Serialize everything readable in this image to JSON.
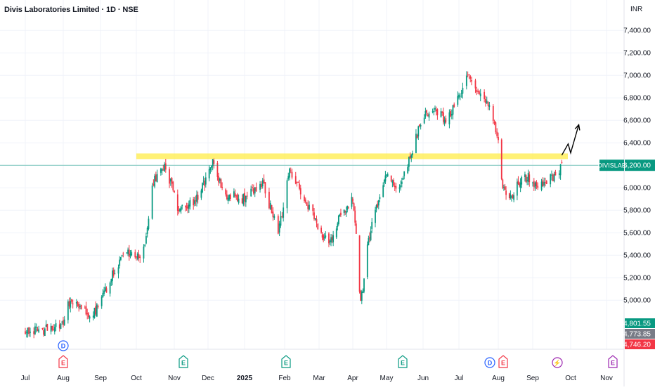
{
  "chart_data": {
    "type": "candlestick",
    "title": "Divis Laboratories Limited · 1D · NSE",
    "currency": "INR",
    "symbol": "DIVISLAB",
    "last_price_label": "6,200.00",
    "last_price": 6200,
    "ylim": [
      4700,
      7560
    ],
    "y_ticks": [
      {
        "value": 7400,
        "label": "7,400.00"
      },
      {
        "value": 7200,
        "label": "7,200.00"
      },
      {
        "value": 7000,
        "label": "7,000.00"
      },
      {
        "value": 6800,
        "label": "6,800.00"
      },
      {
        "value": 6600,
        "label": "6,600.00"
      },
      {
        "value": 6400,
        "label": "6,400.00"
      },
      {
        "value": 6200,
        "label": "6,200.00"
      },
      {
        "value": 6000,
        "label": "6,000.00"
      },
      {
        "value": 5800,
        "label": "5,800.00"
      },
      {
        "value": 5600,
        "label": "5,600.00"
      },
      {
        "value": 5400,
        "label": "5,400.00"
      },
      {
        "value": 5200,
        "label": "5,200.00"
      },
      {
        "value": 5000,
        "label": "5,000.00"
      }
    ],
    "x_months": [
      {
        "month": "2024-07",
        "label": "Jul",
        "bold": false
      },
      {
        "month": "2024-08",
        "label": "Aug",
        "bold": false
      },
      {
        "month": "2024-09",
        "label": "Sep",
        "bold": false
      },
      {
        "month": "2024-10",
        "label": "Oct",
        "bold": false
      },
      {
        "month": "2024-11",
        "label": "Nov",
        "bold": false
      },
      {
        "month": "2024-12",
        "label": "Dec",
        "bold": false
      },
      {
        "month": "2025-01",
        "label": "2025",
        "bold": true
      },
      {
        "month": "2025-02",
        "label": "Feb",
        "bold": false
      },
      {
        "month": "2025-03",
        "label": "Mar",
        "bold": false
      },
      {
        "month": "2025-04",
        "label": "Apr",
        "bold": false
      },
      {
        "month": "2025-05",
        "label": "May",
        "bold": false
      },
      {
        "month": "2025-06",
        "label": "Jun",
        "bold": false
      },
      {
        "month": "2025-07",
        "label": "Jul",
        "bold": false
      },
      {
        "month": "2025-08",
        "label": "Aug",
        "bold": false
      },
      {
        "month": "2025-09",
        "label": "Sep",
        "bold": false
      },
      {
        "month": "2025-10",
        "label": "Oct",
        "bold": false
      },
      {
        "month": "2025-11",
        "label": "Nov",
        "bold": false
      }
    ],
    "extra_price_labels": [
      {
        "label": "4,801.55",
        "color": "#089981"
      },
      {
        "label": "4,773.85",
        "color": "#787b86"
      },
      {
        "label": "4,746.20",
        "color": "#f23645"
      }
    ],
    "resistance_level": 6280,
    "event_markers": [
      {
        "month": "2024-08",
        "letter": "D",
        "kind": "dividend",
        "color": "#2962ff"
      },
      {
        "month": "2024-08",
        "letter": "E",
        "kind": "earnings",
        "color": "#f23645"
      },
      {
        "month": "2024-11",
        "letter": "E",
        "kind": "earnings",
        "color": "#089981"
      },
      {
        "month": "2025-02",
        "letter": "E",
        "kind": "earnings",
        "color": "#089981"
      },
      {
        "month": "2025-05",
        "letter": "E",
        "kind": "earnings",
        "color": "#089981"
      },
      {
        "month": "2025-08",
        "letter": "D",
        "kind": "dividend",
        "color": "#2962ff"
      },
      {
        "month": "2025-08",
        "letter": "E",
        "kind": "earnings",
        "color": "#f23645"
      },
      {
        "month": "2025-09",
        "letter": "⚡",
        "kind": "split",
        "color": "#9c27b0"
      },
      {
        "month": "2025-11",
        "letter": "E",
        "kind": "earnings",
        "color": "#9c27b0"
      }
    ],
    "series_close": [
      [
        "2024-07-01",
        4720
      ],
      [
        "2024-07-15",
        4735
      ],
      [
        "2024-08-01",
        4780
      ],
      [
        "2024-08-05",
        4980
      ],
      [
        "2024-08-15",
        4920
      ],
      [
        "2024-08-25",
        4850
      ],
      [
        "2024-09-01",
        5000
      ],
      [
        "2024-09-10",
        5200
      ],
      [
        "2024-09-20",
        5420
      ],
      [
        "2024-10-01",
        5380
      ],
      [
        "2024-10-08",
        5460
      ],
      [
        "2024-10-14",
        6050
      ],
      [
        "2024-10-25",
        6180
      ],
      [
        "2024-11-05",
        5780
      ],
      [
        "2024-11-20",
        5900
      ],
      [
        "2024-12-01",
        6100
      ],
      [
        "2024-12-05",
        6220
      ],
      [
        "2024-12-15",
        5950
      ],
      [
        "2025-01-01",
        5900
      ],
      [
        "2025-01-15",
        6050
      ],
      [
        "2025-01-27",
        5600
      ],
      [
        "2025-02-05",
        6150
      ],
      [
        "2025-02-15",
        5950
      ],
      [
        "2025-03-01",
        5650
      ],
      [
        "2025-03-10",
        5480
      ],
      [
        "2025-03-20",
        5750
      ],
      [
        "2025-04-01",
        5900
      ],
      [
        "2025-04-05",
        5450
      ],
      [
        "2025-04-08",
        4950
      ],
      [
        "2025-04-15",
        5550
      ],
      [
        "2025-04-25",
        5950
      ],
      [
        "2025-05-01",
        6150
      ],
      [
        "2025-05-10",
        5950
      ],
      [
        "2025-05-20",
        6250
      ],
      [
        "2025-06-01",
        6650
      ],
      [
        "2025-06-10",
        6700
      ],
      [
        "2025-06-20",
        6600
      ],
      [
        "2025-07-01",
        6800
      ],
      [
        "2025-07-08",
        7000
      ],
      [
        "2025-07-15",
        6850
      ],
      [
        "2025-07-25",
        6700
      ],
      [
        "2025-08-01",
        6450
      ],
      [
        "2025-08-05",
        6000
      ],
      [
        "2025-08-12",
        5900
      ],
      [
        "2025-08-20",
        6050
      ],
      [
        "2025-08-28",
        6100
      ],
      [
        "2025-09-05",
        5980
      ],
      [
        "2025-09-12",
        6050
      ],
      [
        "2025-09-18",
        6100
      ],
      [
        "2025-09-24",
        6200
      ]
    ],
    "projection_arrow": [
      [
        "2025-09-24",
        6290
      ],
      [
        "2025-09-29",
        6390
      ],
      [
        "2025-10-01",
        6310
      ],
      [
        "2025-10-08",
        6560
      ]
    ]
  }
}
